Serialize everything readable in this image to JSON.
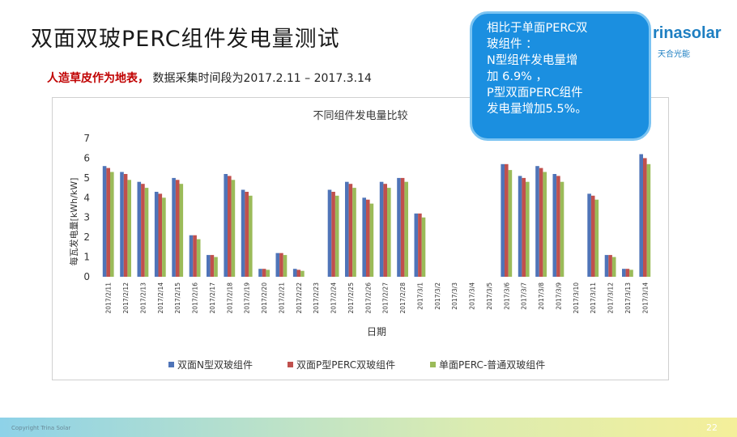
{
  "slide": {
    "title": "双面双玻PERC组件发电量测试",
    "subtitle_red": "人造草皮作为地表，",
    "subtitle_rest": "数据采集时间段为2017.2.11 – 2017.3.14",
    "page_number": "22",
    "footer_text": "Copyright Trina Solar"
  },
  "logo": {
    "brand": "rinasolar",
    "brand_cn": "天合光能"
  },
  "callout": {
    "lines": [
      "相比于单面PERC双",
      "玻组件 ：",
      "N型组件发电量增",
      "加 6.9% ，",
      "P型双面PERC组件",
      "发电量增加5.5%。"
    ],
    "background": "#1b8fe0"
  },
  "chart_data": {
    "type": "bar",
    "title": "不同组件发电量比较",
    "xlabel": "日期",
    "ylabel": "每瓦发电量[kWh/kW]",
    "ylim": [
      0,
      7
    ],
    "yticks": [
      "0",
      "1",
      "2",
      "3",
      "4",
      "5",
      "6",
      "7"
    ],
    "grid": false,
    "legend_position": "bottom",
    "categories": [
      "2017/2/11",
      "2017/2/12",
      "2017/2/13",
      "2017/2/14",
      "2017/2/15",
      "2017/2/16",
      "2017/2/17",
      "2017/2/18",
      "2017/2/19",
      "2017/2/20",
      "2017/2/21",
      "2017/2/22",
      "2017/2/23",
      "2017/2/24",
      "2017/2/25",
      "2017/2/26",
      "2017/2/27",
      "2017/2/28",
      "2017/3/1",
      "2017/3/2",
      "2017/3/3",
      "2017/3/4",
      "2017/3/5",
      "2017/3/6",
      "2017/3/7",
      "2017/3/8",
      "2017/3/9",
      "2017/3/10",
      "2017/3/11",
      "2017/3/12",
      "2017/3/13",
      "2017/3/14"
    ],
    "series": [
      {
        "name": "双面N型双玻组件",
        "color": "#4f74b8",
        "values": [
          5.6,
          5.3,
          4.8,
          4.3,
          5.0,
          2.1,
          1.1,
          5.2,
          4.4,
          0.4,
          1.2,
          0.4,
          0,
          4.4,
          4.8,
          4.0,
          4.8,
          5.0,
          3.2,
          0,
          0,
          0,
          0,
          5.7,
          5.1,
          5.6,
          5.2,
          0,
          4.2,
          1.1,
          0.4,
          6.2
        ]
      },
      {
        "name": "双面P型PERC双玻组件",
        "color": "#c0504d",
        "values": [
          5.5,
          5.2,
          4.7,
          4.2,
          4.9,
          2.1,
          1.1,
          5.1,
          4.3,
          0.4,
          1.2,
          0.35,
          0,
          4.3,
          4.7,
          3.9,
          4.7,
          5.0,
          3.2,
          0,
          0,
          0,
          0,
          5.7,
          5.0,
          5.5,
          5.1,
          0,
          4.1,
          1.1,
          0.4,
          6.0
        ]
      },
      {
        "name": "单面PERC-普通双玻组件",
        "color": "#9bbb59",
        "values": [
          5.3,
          4.9,
          4.5,
          4.0,
          4.7,
          1.9,
          1.0,
          4.9,
          4.1,
          0.35,
          1.1,
          0.3,
          0,
          4.1,
          4.5,
          3.7,
          4.5,
          4.8,
          3.0,
          0,
          0,
          0,
          0,
          5.4,
          4.8,
          5.3,
          4.8,
          0,
          3.9,
          1.0,
          0.35,
          5.7
        ]
      }
    ]
  }
}
